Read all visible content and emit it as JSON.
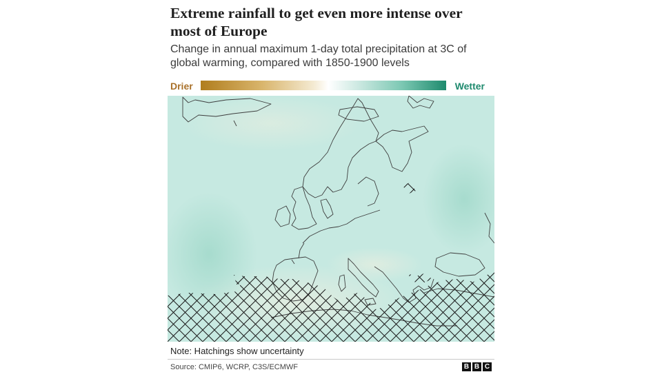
{
  "header": {
    "title": "Extreme rainfall to get even more intense over most of Europe",
    "subtitle": "Change in annual maximum 1-day total precipitation at 3C of global warming, compared with 1850-1900 levels"
  },
  "legend": {
    "left_label": "Drier",
    "right_label": "Wetter",
    "colors": {
      "drier": "#b07d1d",
      "neutral": "#ffffff",
      "wetter": "#1e8a6d"
    }
  },
  "map": {
    "region": "Europe",
    "base_color": "#c6e9e1",
    "coastline_color": "#3d3d3d",
    "hatch_meaning": "uncertainty"
  },
  "footer": {
    "note": "Note: Hatchings show uncertainty",
    "source": "Source: CMIP6, WCRP, C3S/ECMWF",
    "logo_letters": [
      "B",
      "B",
      "C"
    ]
  }
}
